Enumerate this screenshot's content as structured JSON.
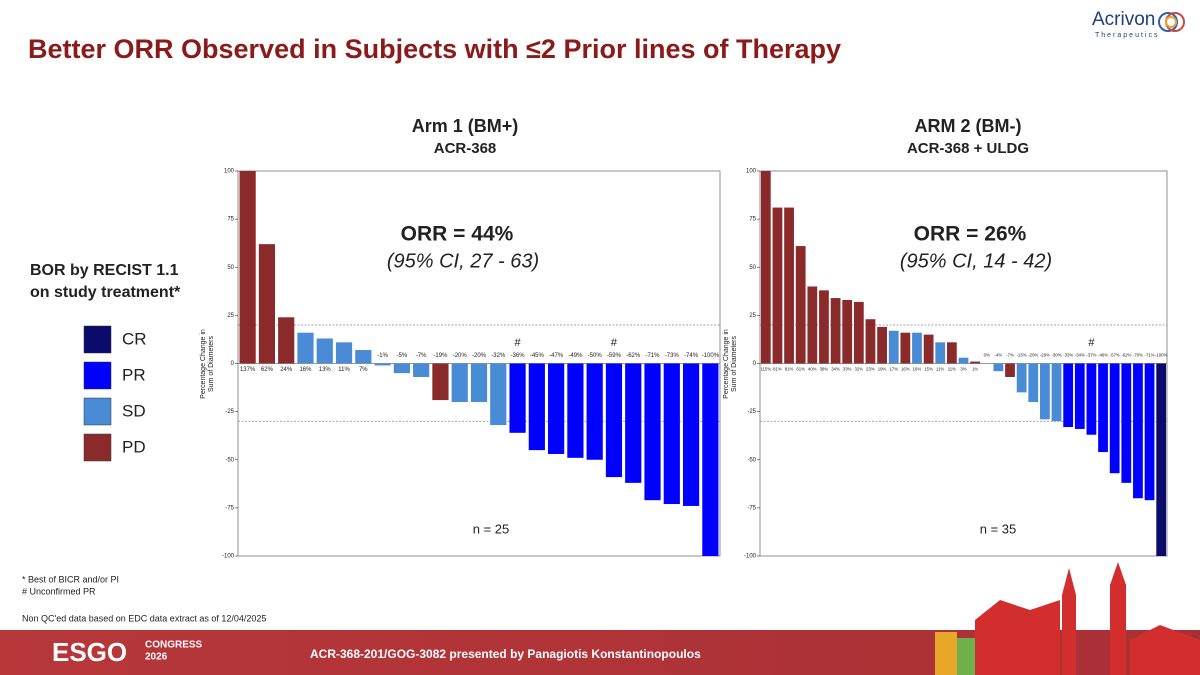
{
  "logo": {
    "name": "Acrivon",
    "tagline": "Therapeutics"
  },
  "title": "Better ORR Observed in Subjects with ≤2 Prior lines of Therapy",
  "legend": {
    "title": [
      "BOR by RECIST 1.1",
      "on study treatment*"
    ],
    "items": [
      {
        "label": "CR",
        "color": "#0b0b6b"
      },
      {
        "label": "PR",
        "color": "#0000ff"
      },
      {
        "label": "SD",
        "color": "#4a8bd6"
      },
      {
        "label": "PD",
        "color": "#8b2a2a"
      }
    ]
  },
  "footnotes": [
    "* Best of BICR and/or PI",
    "# Unconfirmed PR",
    "Non QC'ed data based on EDC data extract as of 12/04/2025"
  ],
  "footer": {
    "brand": "ESGO",
    "event": [
      "CONGRESS",
      "2026"
    ],
    "text": "ACR-368-201/GOG-3082 presented by Panagiotis Konstantinopoulos"
  },
  "chart_data": [
    {
      "type": "bar",
      "title": "Arm 1 (BM+)",
      "subtitle": "ACR-368",
      "ylabel": [
        "Percentage Change in",
        "Sum of Diameters"
      ],
      "values": [
        137,
        62,
        24,
        16,
        13,
        11,
        7,
        -1,
        -5,
        -7,
        -19,
        -20,
        -20,
        -32,
        -36,
        -45,
        -47,
        -49,
        -50,
        -59,
        -62,
        -71,
        -73,
        -74,
        -100
      ],
      "value_labels": [
        "137%",
        "62%",
        "24%",
        "16%",
        "13%",
        "11%",
        "7%",
        "-1%",
        "-5%",
        "-7%",
        "-19%",
        "-20%",
        "-20%",
        "-32%",
        "-36%",
        "-45%",
        "-47%",
        "-49%",
        "-50%",
        "-59%",
        "-62%",
        "-71%",
        "-73%",
        "-74%",
        "-100%"
      ],
      "colors": [
        "#8b2a2a",
        "#8b2a2a",
        "#8b2a2a",
        "#4a8bd6",
        "#4a8bd6",
        "#4a8bd6",
        "#4a8bd6",
        "#4a8bd6",
        "#4a8bd6",
        "#4a8bd6",
        "#8b2a2a",
        "#4a8bd6",
        "#4a8bd6",
        "#4a8bd6",
        "#0000ff",
        "#0000ff",
        "#0000ff",
        "#0000ff",
        "#0000ff",
        "#0000ff",
        "#0000ff",
        "#0000ff",
        "#0000ff",
        "#0000ff",
        "#0000ff"
      ],
      "bar_notes": [
        null,
        null,
        null,
        null,
        null,
        null,
        null,
        null,
        null,
        null,
        null,
        null,
        null,
        null,
        "#",
        null,
        null,
        null,
        null,
        "#",
        null,
        null,
        null,
        null,
        null
      ],
      "ylim": [
        -100,
        100
      ],
      "yticks": [
        -100,
        -75,
        -50,
        -25,
        0,
        25,
        50,
        75,
        100
      ],
      "ref_lines": [
        20,
        -30
      ],
      "annotations": {
        "orr": "ORR = 44%",
        "ci": "(95% CI, 27 - 63)",
        "n": "n = 25"
      }
    },
    {
      "type": "bar",
      "title": "ARM 2 (BM-)",
      "subtitle": "ACR-368 + ULDG",
      "ylabel": [
        "Percentage Change in",
        "Sum of Diameters"
      ],
      "values": [
        115,
        81,
        81,
        61,
        40,
        38,
        34,
        33,
        32,
        23,
        19,
        17,
        16,
        16,
        15,
        11,
        11,
        3,
        1,
        0,
        -4,
        -7,
        -15,
        -20,
        -29,
        -30,
        -33,
        -34,
        -37,
        -46,
        -57,
        -62,
        -70,
        -71,
        -100
      ],
      "value_labels": [
        "115%",
        "81%",
        "81%",
        "61%",
        "40%",
        "38%",
        "34%",
        "33%",
        "32%",
        "23%",
        "19%",
        "17%",
        "16%",
        "16%",
        "15%",
        "11%",
        "11%",
        "3%",
        "1%",
        "0%",
        "-4%",
        "-7%",
        "-15%",
        "-20%",
        "-29%",
        "-30%",
        "-33%",
        "-34%",
        "-37%",
        "-46%",
        "-57%",
        "-62%",
        "-70%",
        "-71%",
        "-100%"
      ],
      "colors": [
        "#8b2a2a",
        "#8b2a2a",
        "#8b2a2a",
        "#8b2a2a",
        "#8b2a2a",
        "#8b2a2a",
        "#8b2a2a",
        "#8b2a2a",
        "#8b2a2a",
        "#8b2a2a",
        "#8b2a2a",
        "#4a8bd6",
        "#8b2a2a",
        "#4a8bd6",
        "#8b2a2a",
        "#4a8bd6",
        "#8b2a2a",
        "#4a8bd6",
        "#8b2a2a",
        "#4a8bd6",
        "#4a8bd6",
        "#8b2a2a",
        "#4a8bd6",
        "#4a8bd6",
        "#4a8bd6",
        "#4a8bd6",
        "#0000ff",
        "#0000ff",
        "#0000ff",
        "#0000ff",
        "#0000ff",
        "#0000ff",
        "#0000ff",
        "#0000ff",
        "#0b0b6b"
      ],
      "bar_notes": [
        null,
        null,
        null,
        null,
        null,
        null,
        null,
        null,
        null,
        null,
        null,
        null,
        null,
        null,
        null,
        null,
        null,
        null,
        null,
        null,
        null,
        null,
        null,
        null,
        null,
        null,
        null,
        null,
        "#",
        null,
        null,
        null,
        null,
        null,
        null
      ],
      "ylim": [
        -100,
        100
      ],
      "yticks": [
        -100,
        -75,
        -50,
        -25,
        0,
        25,
        50,
        75,
        100
      ],
      "ref_lines": [
        20,
        -30
      ],
      "annotations": {
        "orr": "ORR = 26%",
        "ci": "(95% CI, 14 - 42)",
        "n": "n = 35"
      }
    }
  ]
}
